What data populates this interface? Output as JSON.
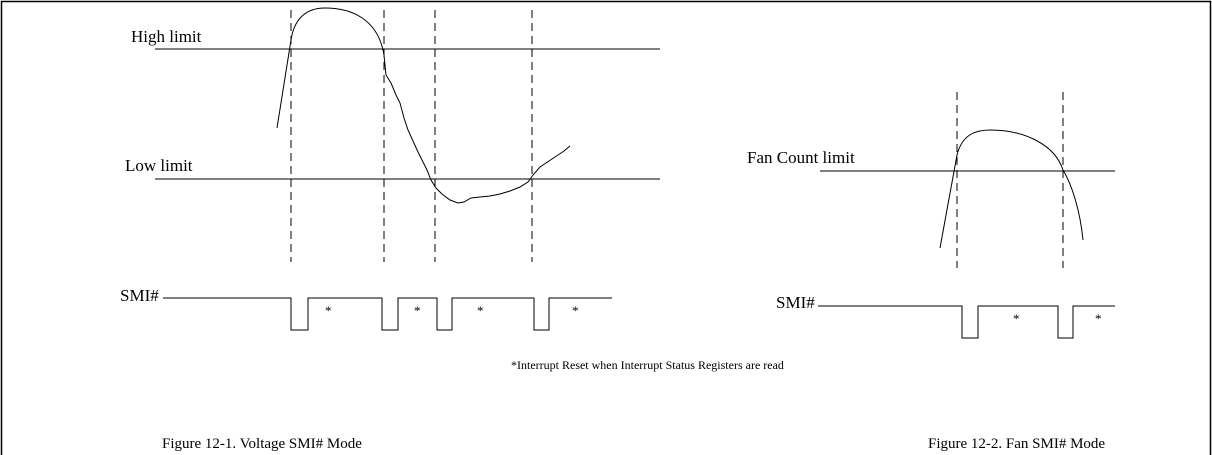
{
  "voltage_figure": {
    "high_limit_label": "High limit",
    "low_limit_label": "Low limit",
    "smi_label": "SMI#",
    "marker": "*",
    "caption": "Figure 12-1. Voltage SMI#  Mode"
  },
  "fan_figure": {
    "limit_label": "Fan Count limit",
    "smi_label": "SMI#",
    "marker": "*",
    "caption": "Figure 12-2. Fan SMI# Mode"
  },
  "footnote": "*Interrupt Reset when Interrupt Status Registers are read"
}
